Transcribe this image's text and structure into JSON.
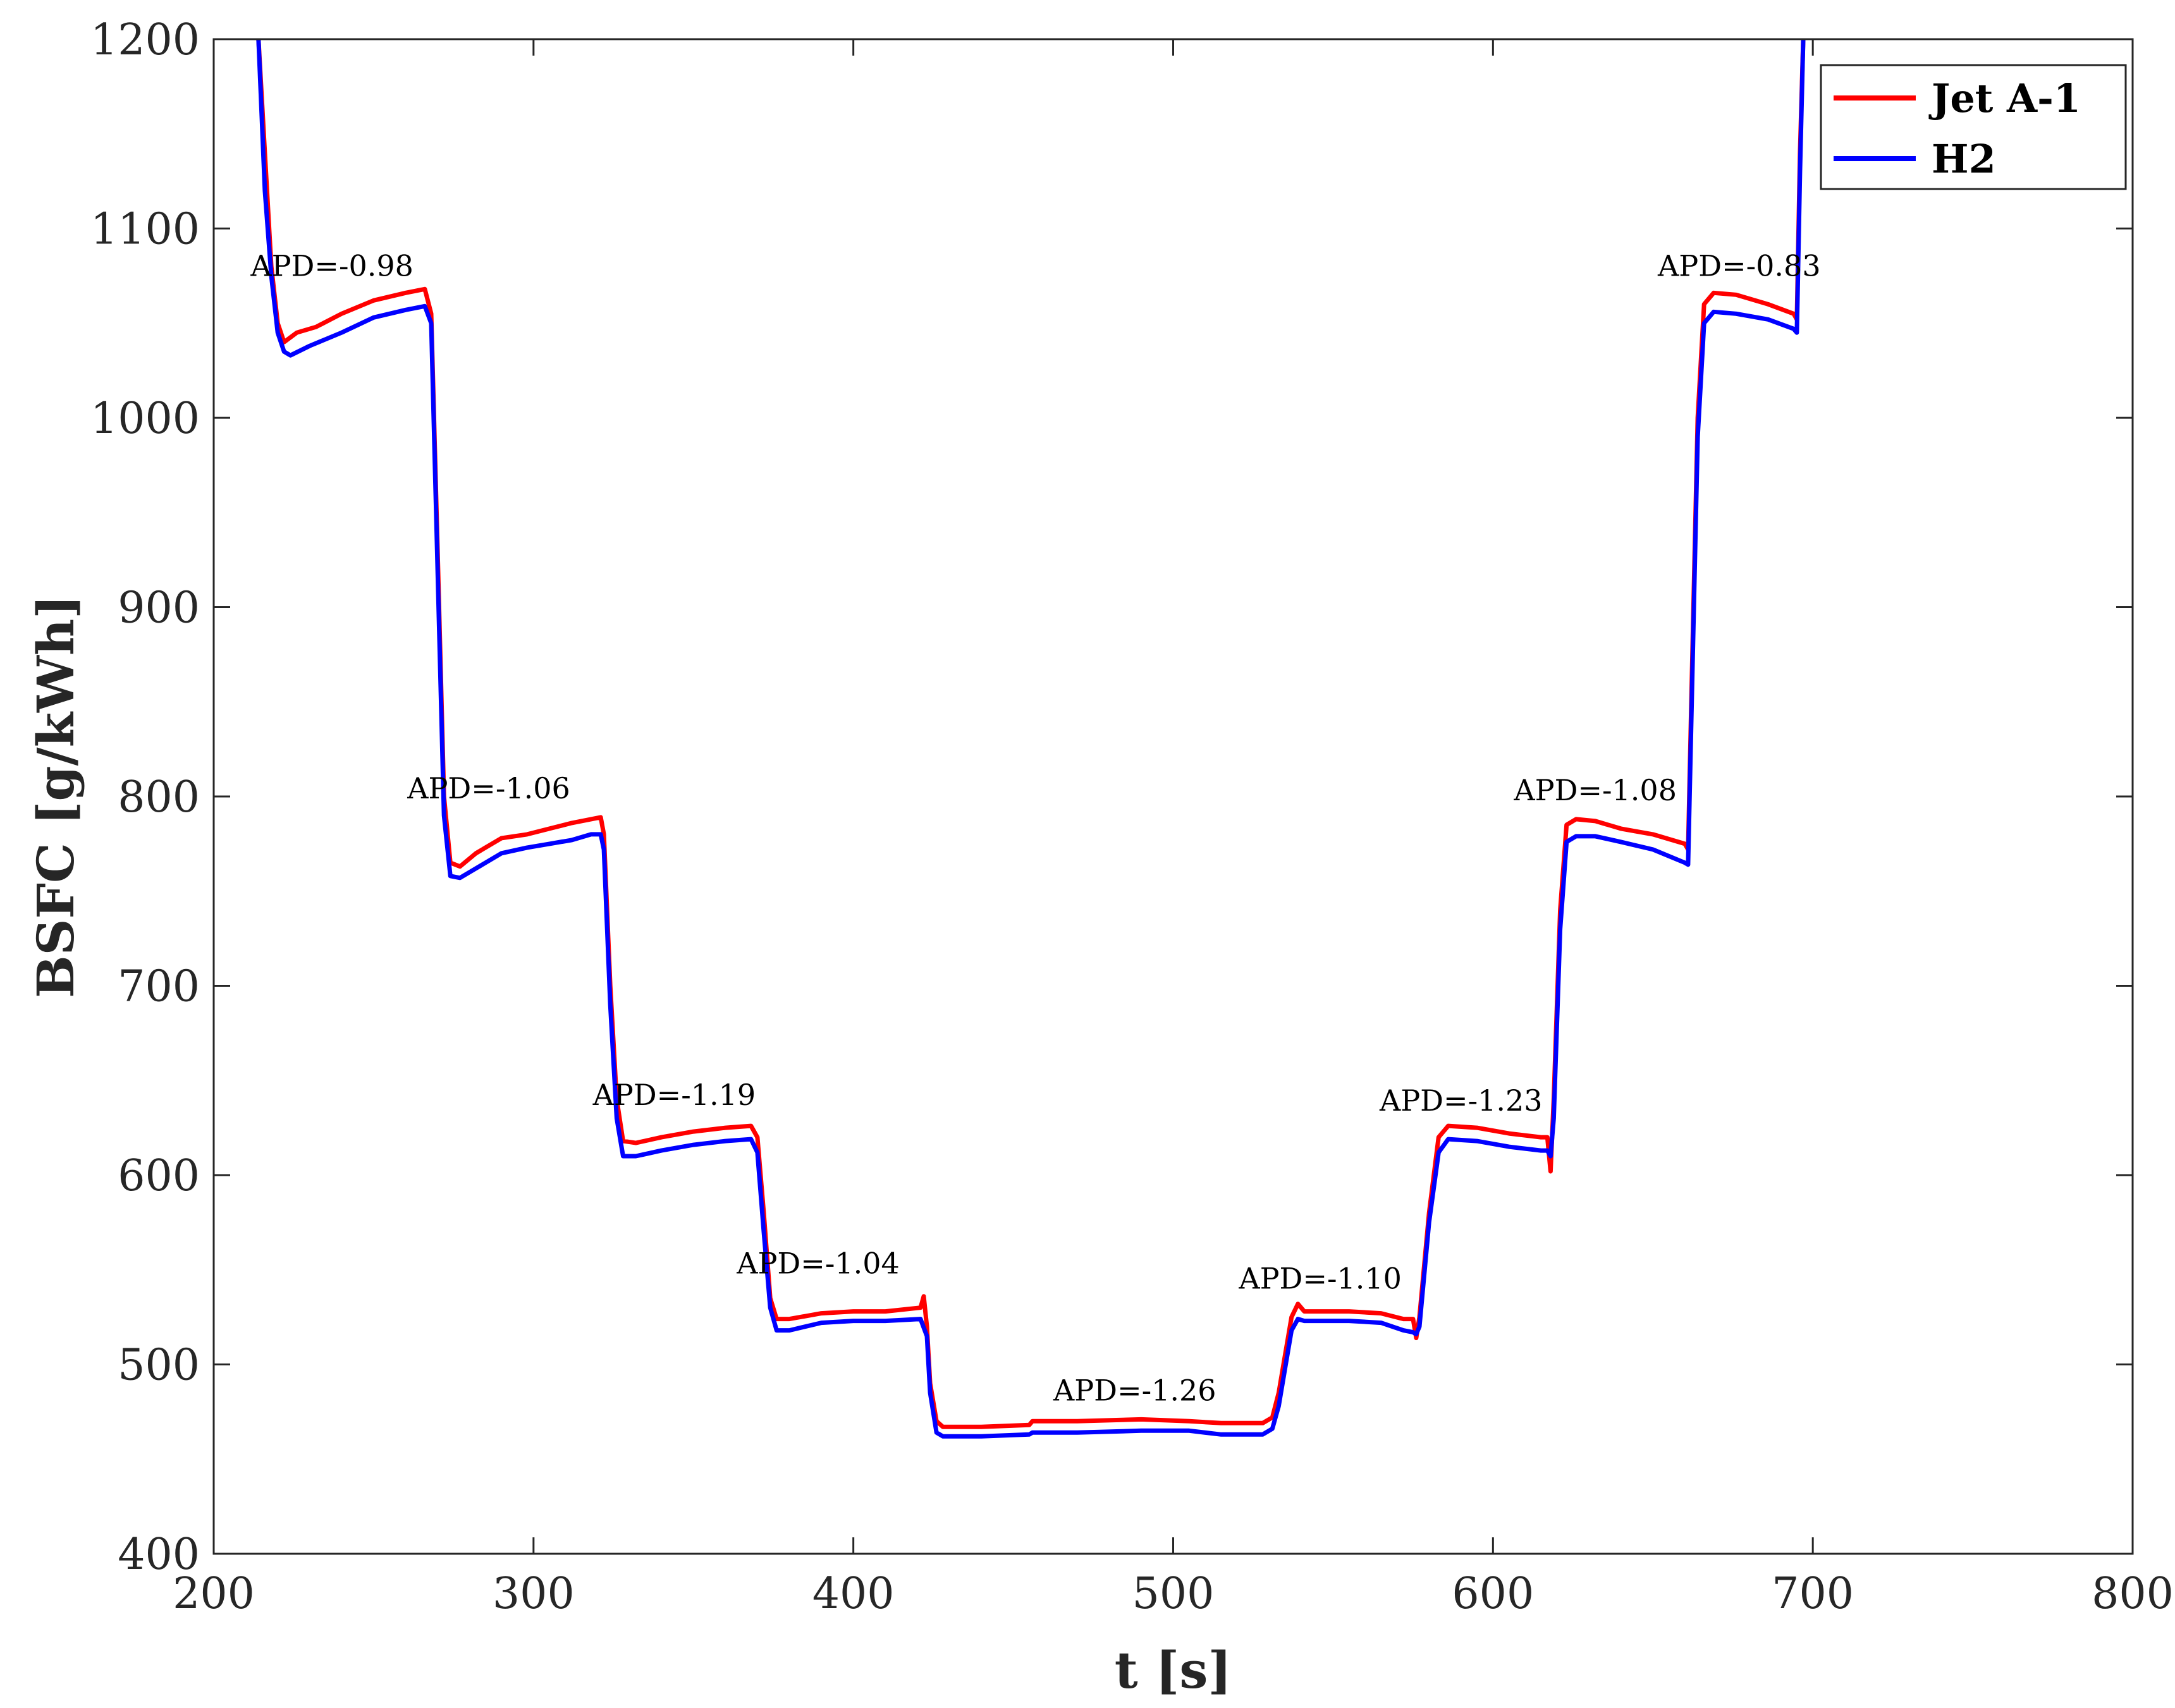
{
  "chart_data": {
    "type": "line",
    "xlabel": "t [s]",
    "ylabel": "BSFC [g/kWh]",
    "xlim": [
      200,
      800
    ],
    "ylim": [
      400,
      1200
    ],
    "xticks": [
      "200",
      "300",
      "400",
      "500",
      "600",
      "700",
      "800"
    ],
    "yticks": [
      "400",
      "500",
      "600",
      "700",
      "800",
      "900",
      "1000",
      "1100",
      "1200"
    ],
    "grid": false,
    "legend": {
      "placement": "top-right"
    },
    "series": [
      {
        "name": "Jet A-1",
        "color": "#ff0000",
        "points": [
          [
            214,
            1200
          ],
          [
            216,
            1140
          ],
          [
            218,
            1080
          ],
          [
            220,
            1050
          ],
          [
            222,
            1040
          ],
          [
            226,
            1045
          ],
          [
            232,
            1048
          ],
          [
            240,
            1055
          ],
          [
            250,
            1062
          ],
          [
            260,
            1066
          ],
          [
            266,
            1068
          ],
          [
            268,
            1055
          ],
          [
            270,
            930
          ],
          [
            272,
            800
          ],
          [
            274,
            765
          ],
          [
            277,
            763
          ],
          [
            282,
            770
          ],
          [
            290,
            778
          ],
          [
            298,
            780
          ],
          [
            305,
            783
          ],
          [
            312,
            786
          ],
          [
            318,
            788
          ],
          [
            321,
            789
          ],
          [
            322,
            780
          ],
          [
            324,
            700
          ],
          [
            326,
            640
          ],
          [
            328,
            618
          ],
          [
            332,
            617
          ],
          [
            340,
            620
          ],
          [
            350,
            623
          ],
          [
            360,
            625
          ],
          [
            368,
            626
          ],
          [
            370,
            620
          ],
          [
            372,
            580
          ],
          [
            374,
            535
          ],
          [
            376,
            524
          ],
          [
            380,
            524
          ],
          [
            390,
            527
          ],
          [
            400,
            528
          ],
          [
            410,
            528
          ],
          [
            421,
            530
          ],
          [
            422,
            536
          ],
          [
            423,
            520
          ],
          [
            424,
            490
          ],
          [
            426,
            470
          ],
          [
            428,
            467
          ],
          [
            440,
            467
          ],
          [
            455,
            468
          ],
          [
            456,
            470
          ],
          [
            470,
            470
          ],
          [
            490,
            471
          ],
          [
            505,
            470
          ],
          [
            515,
            469
          ],
          [
            528,
            469
          ],
          [
            531,
            472
          ],
          [
            533,
            485
          ],
          [
            535,
            505
          ],
          [
            537,
            525
          ],
          [
            539,
            532
          ],
          [
            541,
            528
          ],
          [
            555,
            528
          ],
          [
            565,
            527
          ],
          [
            572,
            524
          ],
          [
            575,
            524
          ],
          [
            576,
            514
          ],
          [
            577,
            525
          ],
          [
            580,
            580
          ],
          [
            583,
            620
          ],
          [
            586,
            626
          ],
          [
            595,
            625
          ],
          [
            605,
            622
          ],
          [
            615,
            620
          ],
          [
            617,
            620
          ],
          [
            618,
            602
          ],
          [
            619,
            640
          ],
          [
            621,
            740
          ],
          [
            623,
            785
          ],
          [
            626,
            788
          ],
          [
            632,
            787
          ],
          [
            640,
            783
          ],
          [
            650,
            780
          ],
          [
            660,
            775
          ],
          [
            661,
            772
          ],
          [
            662,
            850
          ],
          [
            664,
            1000
          ],
          [
            666,
            1060
          ],
          [
            669,
            1066
          ],
          [
            676,
            1065
          ],
          [
            686,
            1060
          ],
          [
            694,
            1055
          ],
          [
            695,
            1052
          ],
          [
            696,
            1140
          ],
          [
            697,
            1200
          ]
        ]
      },
      {
        "name": "H2",
        "color": "#0000ff",
        "points": [
          [
            214,
            1200
          ],
          [
            216,
            1120
          ],
          [
            218,
            1075
          ],
          [
            220,
            1045
          ],
          [
            222,
            1035
          ],
          [
            224,
            1033
          ],
          [
            230,
            1038
          ],
          [
            240,
            1045
          ],
          [
            250,
            1053
          ],
          [
            260,
            1057
          ],
          [
            266,
            1059
          ],
          [
            268,
            1050
          ],
          [
            270,
            920
          ],
          [
            272,
            790
          ],
          [
            274,
            758
          ],
          [
            277,
            757
          ],
          [
            282,
            762
          ],
          [
            290,
            770
          ],
          [
            298,
            773
          ],
          [
            305,
            775
          ],
          [
            312,
            777
          ],
          [
            318,
            780
          ],
          [
            321,
            780
          ],
          [
            322,
            772
          ],
          [
            324,
            690
          ],
          [
            326,
            630
          ],
          [
            328,
            610
          ],
          [
            332,
            610
          ],
          [
            340,
            613
          ],
          [
            350,
            616
          ],
          [
            360,
            618
          ],
          [
            368,
            619
          ],
          [
            370,
            612
          ],
          [
            372,
            570
          ],
          [
            374,
            530
          ],
          [
            376,
            518
          ],
          [
            380,
            518
          ],
          [
            390,
            522
          ],
          [
            400,
            523
          ],
          [
            410,
            523
          ],
          [
            421,
            524
          ],
          [
            423,
            515
          ],
          [
            424,
            485
          ],
          [
            426,
            464
          ],
          [
            428,
            462
          ],
          [
            440,
            462
          ],
          [
            455,
            463
          ],
          [
            456,
            464
          ],
          [
            470,
            464
          ],
          [
            490,
            465
          ],
          [
            505,
            465
          ],
          [
            515,
            463
          ],
          [
            528,
            463
          ],
          [
            531,
            466
          ],
          [
            533,
            478
          ],
          [
            535,
            498
          ],
          [
            537,
            518
          ],
          [
            539,
            524
          ],
          [
            541,
            523
          ],
          [
            555,
            523
          ],
          [
            565,
            522
          ],
          [
            572,
            518
          ],
          [
            575,
            517
          ],
          [
            576,
            516
          ],
          [
            577,
            520
          ],
          [
            580,
            575
          ],
          [
            583,
            612
          ],
          [
            586,
            619
          ],
          [
            595,
            618
          ],
          [
            605,
            615
          ],
          [
            615,
            613
          ],
          [
            617,
            613
          ],
          [
            618,
            610
          ],
          [
            619,
            630
          ],
          [
            621,
            730
          ],
          [
            623,
            776
          ],
          [
            626,
            779
          ],
          [
            632,
            779
          ],
          [
            640,
            776
          ],
          [
            650,
            772
          ],
          [
            660,
            765
          ],
          [
            661,
            764
          ],
          [
            662,
            840
          ],
          [
            664,
            990
          ],
          [
            666,
            1050
          ],
          [
            669,
            1056
          ],
          [
            676,
            1055
          ],
          [
            686,
            1052
          ],
          [
            694,
            1047
          ],
          [
            695,
            1045
          ],
          [
            696,
            1130
          ],
          [
            697,
            1200
          ]
        ]
      }
    ],
    "annotations": [
      {
        "text": "APD=-0.98",
        "x": 237,
        "y": 1075
      },
      {
        "text": "APD=-1.06",
        "x": 286,
        "y": 799
      },
      {
        "text": "APD=-1.19",
        "x": 344,
        "y": 637
      },
      {
        "text": "APD=-1.04",
        "x": 389,
        "y": 548
      },
      {
        "text": "APD=-1.26",
        "x": 488,
        "y": 481
      },
      {
        "text": "APD=-1.10",
        "x": 546,
        "y": 540
      },
      {
        "text": "APD=-1.23",
        "x": 590,
        "y": 634
      },
      {
        "text": "APD=-1.08",
        "x": 632,
        "y": 798
      },
      {
        "text": "APD=-0.83",
        "x": 677,
        "y": 1075
      }
    ]
  }
}
